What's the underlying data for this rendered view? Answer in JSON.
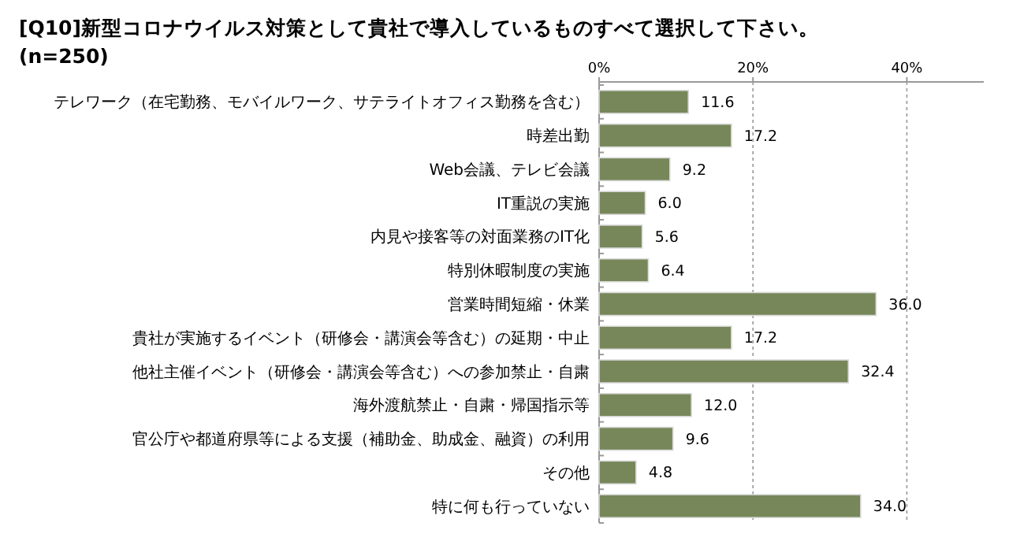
{
  "chart_data": {
    "type": "bar",
    "orientation": "horizontal",
    "title": "[Q10]新型コロナウイルス対策として貴社で導入しているものすべて選択して下さい。",
    "subtitle": "(n=250)",
    "categories": [
      "テレワーク（在宅勤務、モバイルワーク、サテライトオフィス勤務を含む）",
      "時差出勤",
      "Web会議、テレビ会議",
      "IT重説の実施",
      "内見や接客等の対面業務のIT化",
      "特別休暇制度の実施",
      "営業時間短縮・休業",
      "貴社が実施するイベント（研修会・講演会等含む）の延期・中止",
      "他社主催イベント（研修会・講演会等含む）への参加禁止・自粛",
      "海外渡航禁止・自粛・帰国指示等",
      "官公庁や都道府県等による支援（補助金、助成金、融資）の利用",
      "その他",
      "特に何も行っていない"
    ],
    "values": [
      11.6,
      17.2,
      9.2,
      6.0,
      5.6,
      6.4,
      36.0,
      17.2,
      32.4,
      12.0,
      9.6,
      4.8,
      34.0
    ],
    "value_labels": [
      "11.6",
      "17.2",
      "9.2",
      "6.0",
      "5.6",
      "6.4",
      "36.0",
      "17.2",
      "32.4",
      "12.0",
      "9.6",
      "4.8",
      "34.0"
    ],
    "color": "#77875a",
    "xlim": [
      0,
      50
    ],
    "xticks": [
      {
        "value": 0,
        "label": "0%"
      },
      {
        "value": 20,
        "label": "20%"
      },
      {
        "value": 40,
        "label": "40%"
      }
    ],
    "grid": "x"
  }
}
